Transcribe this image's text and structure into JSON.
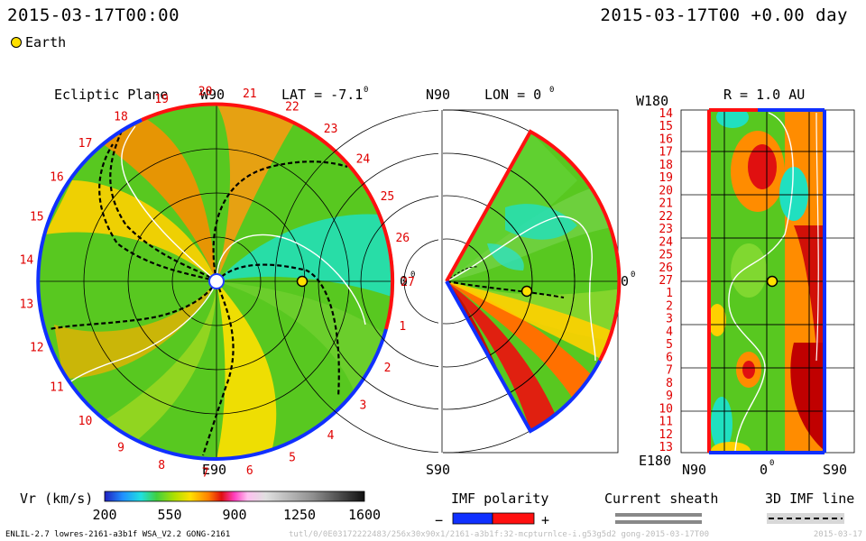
{
  "header": {
    "time_left": "2015-03-17T00:00",
    "time_right": "2015-03-17T00 +0.00 day"
  },
  "legend": {
    "earth_label": "Earth"
  },
  "panels": {
    "ecliptic": {
      "title": "Ecliptic Plane",
      "top_label": "W90",
      "bottom_label": "E90",
      "right_label": "0",
      "lat_label": "LAT = -7.1",
      "degree_mark": "0",
      "rotation_labels": [
        "1",
        "2",
        "3",
        "4",
        "5",
        "6",
        "7",
        "8",
        "9",
        "10",
        "11",
        "12",
        "13",
        "14",
        "15",
        "16",
        "17",
        "18",
        "19",
        "20",
        "21",
        "22",
        "23",
        "24",
        "25",
        "26",
        "27"
      ]
    },
    "meridional": {
      "top_label": "N90",
      "bottom_label": "S90",
      "right_label": "0",
      "lon_label": "LON = 0",
      "degree_mark": "0"
    },
    "radial": {
      "title": "R = 1.0 AU",
      "top_left_label": "W180",
      "bottom_left_label": "E180",
      "x_left": "N90",
      "x_mid": "0",
      "x_right": "S90",
      "degree_mark": "0",
      "row_labels": [
        "14",
        "15",
        "16",
        "17",
        "18",
        "19",
        "20",
        "21",
        "22",
        "23",
        "24",
        "25",
        "26",
        "27",
        "1",
        "2",
        "3",
        "4",
        "5",
        "6",
        "7",
        "8",
        "9",
        "10",
        "11",
        "12",
        "13"
      ]
    }
  },
  "colorbar": {
    "label": "Vr (km/s)",
    "ticks": [
      "200",
      "550",
      "900",
      "1250",
      "1600"
    ],
    "range": [
      200,
      1600
    ]
  },
  "legends": {
    "imf_polarity": "IMF polarity",
    "minus": "−",
    "plus": "+",
    "current_sheath": "Current sheath",
    "imf_line": "3D IMF line"
  },
  "footer": {
    "left": "ENLIL-2.7 lowres-2161-a3b1f WSA_V2.2 GONG-2161",
    "right": "tutl/0/0E03172222483/256x30x90x1/2161-a3b1f:32-mcpturnlce-i.g53g5d2 gong-2015-03-17T00",
    "right2": "2015-03-17"
  },
  "colors": {
    "positive": "#ff1010",
    "negative": "#1030ff",
    "earth": "#ffe000"
  },
  "chart_data": [
    {
      "type": "heatmap",
      "title": "Ecliptic Plane",
      "quantity": "Vr (km/s)",
      "earth_position": {
        "lon_deg": 0,
        "r_au": 1.0
      }
    },
    {
      "type": "heatmap",
      "title": "LON = 0",
      "quantity": "Vr (km/s)",
      "theta_range": [
        "N90",
        "S90"
      ],
      "earth_position": {
        "lat_deg": -7.1,
        "r_au": 1.0
      }
    },
    {
      "type": "heatmap",
      "title": "R = 1.0 AU",
      "quantity": "Vr (km/s)",
      "xrange": [
        "N90",
        "S90"
      ],
      "yrange": [
        "W180",
        "E180"
      ],
      "earth_position": {
        "lat_deg": -7.1,
        "lon_deg": 0
      }
    }
  ]
}
